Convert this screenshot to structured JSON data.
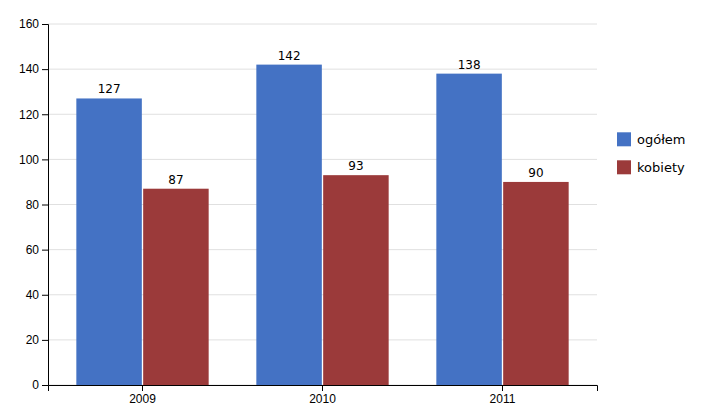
{
  "chart_data": {
    "type": "bar",
    "categories": [
      "2009",
      "2010",
      "2011"
    ],
    "series": [
      {
        "name": "ogółem",
        "color": "#4472C4",
        "values": [
          127,
          142,
          138
        ]
      },
      {
        "name": "kobiety",
        "color": "#9B3A3A",
        "values": [
          87,
          93,
          90
        ]
      }
    ],
    "ylim": [
      0,
      160
    ],
    "yticks": [
      0,
      20,
      40,
      60,
      80,
      100,
      120,
      140,
      160
    ],
    "grid": true,
    "legend": "right",
    "data_labels": true
  }
}
